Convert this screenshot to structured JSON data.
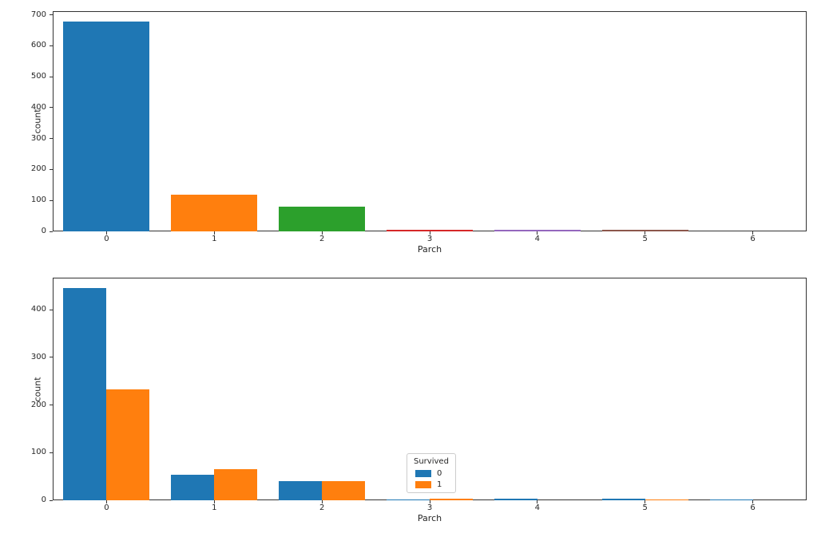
{
  "figure": {
    "background_color": "#ffffff",
    "spine_color": "#333333",
    "text_color": "#262626"
  },
  "palette": {
    "blue": "#1f77b4",
    "orange": "#ff7f0e",
    "green": "#2ca02c",
    "red": "#d62728",
    "purple": "#9467bd",
    "brown": "#8c564b",
    "pink": "#e377c2"
  },
  "chart_data": [
    {
      "type": "bar",
      "title": "",
      "xlabel": "Parch",
      "ylabel": "count",
      "categories": [
        "0",
        "1",
        "2",
        "3",
        "4",
        "5",
        "6"
      ],
      "values": [
        678,
        118,
        80,
        5,
        4,
        5,
        1
      ],
      "bar_colors": [
        "#1f77b4",
        "#ff7f0e",
        "#2ca02c",
        "#d62728",
        "#9467bd",
        "#8c564b",
        "#e377c2"
      ],
      "yticks": [
        0,
        100,
        200,
        300,
        400,
        500,
        600,
        700
      ],
      "ylim": [
        0,
        712
      ],
      "grid": false,
      "legend": null
    },
    {
      "type": "bar",
      "title": "",
      "xlabel": "Parch",
      "ylabel": "count",
      "categories": [
        "0",
        "1",
        "2",
        "3",
        "4",
        "5",
        "6"
      ],
      "series": [
        {
          "name": "0",
          "color": "#1f77b4",
          "values": [
            445,
            53,
            40,
            2,
            4,
            4,
            1
          ]
        },
        {
          "name": "1",
          "color": "#ff7f0e",
          "values": [
            233,
            65,
            40,
            3,
            0,
            1,
            0
          ]
        }
      ],
      "yticks": [
        0,
        100,
        200,
        300,
        400
      ],
      "ylim": [
        0,
        467
      ],
      "grid": false,
      "legend": {
        "title": "Survived",
        "entries": [
          {
            "label": "0",
            "color": "#1f77b4"
          },
          {
            "label": "1",
            "color": "#ff7f0e"
          }
        ],
        "position": "center"
      }
    }
  ]
}
